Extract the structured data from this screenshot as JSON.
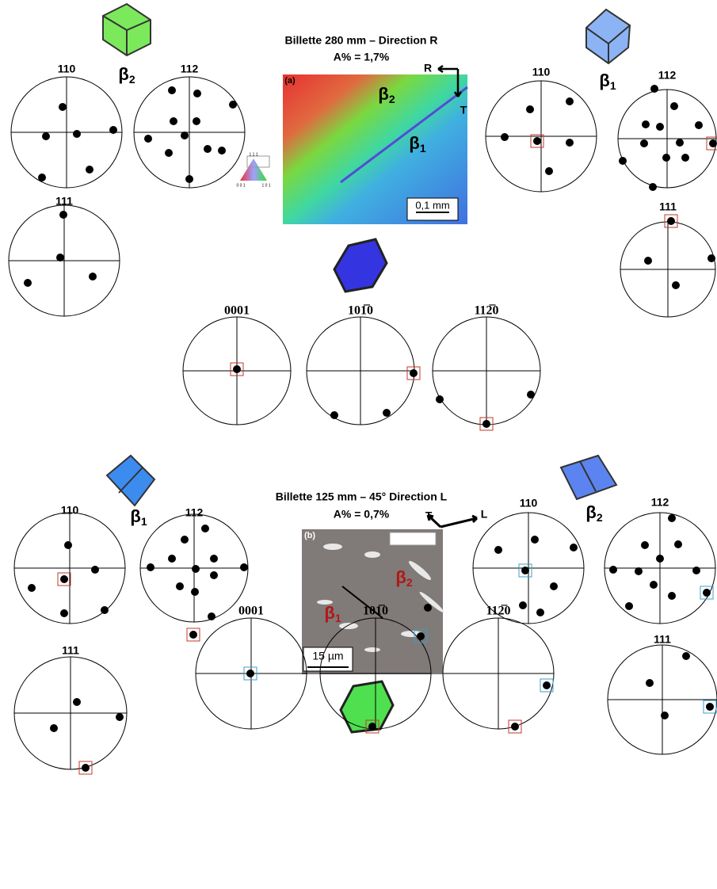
{
  "top": {
    "title": "Billette 280 mm – Direction R",
    "elongation": "A% = 1,7%",
    "panel": "(a)",
    "axes": [
      "R",
      "T"
    ],
    "scale_bar": "0,1 mm",
    "map_labels": [
      {
        "symbol": "β",
        "sub": "2"
      },
      {
        "symbol": "β",
        "sub": "1"
      }
    ],
    "triangle": [
      "1 1 1",
      "0 0 1",
      "1 0 1"
    ],
    "left_phase": {
      "symbol": "β",
      "sub": "2"
    },
    "left_poles": [
      "110",
      "112",
      "111"
    ],
    "right_phase": {
      "symbol": "β",
      "sub": "1"
    },
    "right_poles": [
      "110",
      "112",
      "111"
    ],
    "hcp_poles": [
      "0001",
      "101̅0",
      "112̅0"
    ]
  },
  "bottom": {
    "title": "Billette 125 mm – 45° Direction L",
    "elongation": "A% = 0,7%",
    "panel": "(b)",
    "axes": [
      "T",
      "L"
    ],
    "scale_bar": "15 µm",
    "map_labels": [
      {
        "symbol": "β",
        "sub": "1"
      },
      {
        "symbol": "β",
        "sub": "2"
      }
    ],
    "left_phase": {
      "symbol": "β",
      "sub": "1"
    },
    "left_poles": [
      "110",
      "112",
      "111"
    ],
    "right_phase": {
      "symbol": "β",
      "sub": "2"
    },
    "right_poles": [
      "110",
      "112",
      "111"
    ],
    "hcp_poles": [
      "0001",
      "101̅0",
      "112̅0"
    ]
  }
}
